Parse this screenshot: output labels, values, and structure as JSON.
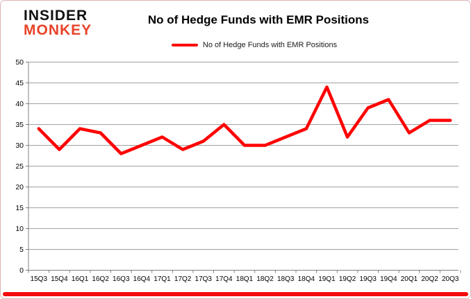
{
  "logo": {
    "line1": "INSIDER",
    "line2": "MONKEY"
  },
  "header": {
    "title": "No of Hedge Funds with EMR Positions"
  },
  "legend": {
    "label": "No of Hedge Funds with EMR Positions"
  },
  "colors": {
    "series": "#ff0000",
    "gridline": "#a0a0a0",
    "axis": "#7f7f7f",
    "text": "#000000",
    "logo_red": "#e8432a",
    "accent_bar": "#f40b0b",
    "card_border": "#dcb3b3"
  },
  "chart_data": {
    "type": "line",
    "title": "No of Hedge Funds with EMR Positions",
    "categories": [
      "15Q3",
      "15Q4",
      "16Q1",
      "16Q2",
      "16Q3",
      "16Q4",
      "17Q1",
      "17Q2",
      "17Q3",
      "17Q4",
      "18Q1",
      "18Q2",
      "18Q3",
      "18Q4",
      "19Q1",
      "19Q2",
      "19Q3",
      "19Q4",
      "20Q1",
      "20Q2",
      "20Q3"
    ],
    "series": [
      {
        "name": "No of Hedge Funds with EMR Positions",
        "color": "#ff0000",
        "values": [
          34,
          29,
          34,
          33,
          28,
          30,
          32,
          29,
          31,
          35,
          30,
          30,
          32,
          34,
          44,
          32,
          39,
          41,
          33,
          36,
          36
        ]
      }
    ],
    "xlabel": "",
    "ylabel": "",
    "ylim": [
      0,
      50
    ],
    "ytick_step": 5,
    "grid": "horizontal",
    "legend_position": "top"
  }
}
